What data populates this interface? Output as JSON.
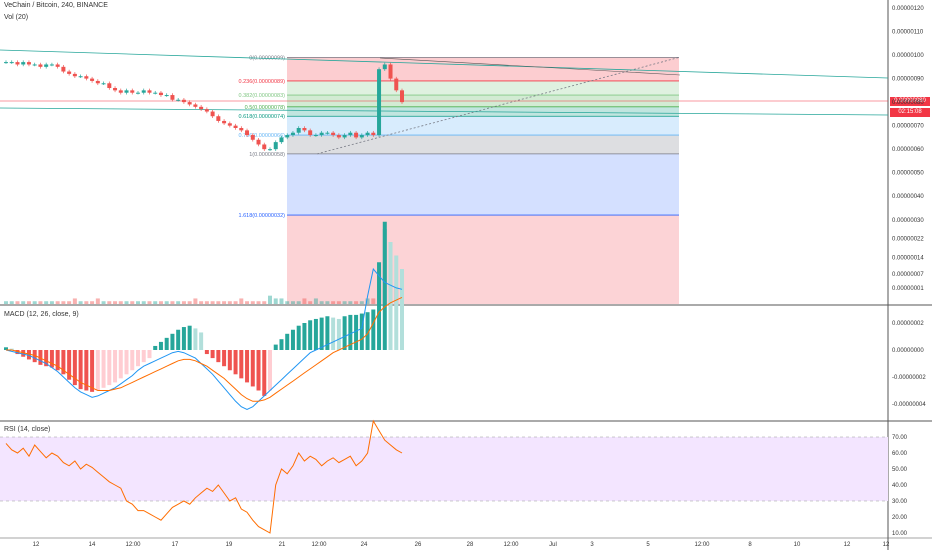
{
  "header": {
    "symbol_title": "VeChain / Bitcoin, 240, BINANCE",
    "volume_label": "Vol (20)",
    "macd_label": "MACD (12, 26, close, 9)",
    "rsi_label": "RSI (14, close)"
  },
  "price_axis": {
    "ticks": [
      "0.00000120",
      "0.00000110",
      "0.00000100",
      "0.00000090",
      "0.00000080",
      "0.00000070",
      "0.00000060",
      "0.00000050",
      "0.00000040",
      "0.00000030",
      "0.00000022",
      "0.00000014",
      "0.00000007",
      "0.00000001"
    ],
    "current_price": "0.00000080",
    "countdown": "02:15:08"
  },
  "macd_axis": {
    "ticks": [
      "0.00000002",
      "0.00000000",
      "-0.00000002",
      "-0.00000004"
    ]
  },
  "rsi_axis": {
    "ticks": [
      "70.00",
      "60.00",
      "50.00",
      "40.00",
      "30.00",
      "20.00",
      "10.00"
    ]
  },
  "time_axis": {
    "ticks": [
      "12",
      "14",
      "12:00",
      "17",
      "19",
      "21",
      "12:00",
      "24",
      "26",
      "28",
      "12:00",
      "Jul",
      "3",
      "5",
      "12:00",
      "8",
      "10",
      "12",
      "12"
    ]
  },
  "fib_levels": [
    {
      "label": "0(0.00000099)",
      "price": 9.9e-07,
      "color": "#787b86"
    },
    {
      "label": "0.236(0.00000089)",
      "price": 8.9e-07,
      "color": "#f23645"
    },
    {
      "label": "0.382(0.00000083)",
      "price": 8.3e-07,
      "color": "#81c784"
    },
    {
      "label": "0.5(0.00000078)",
      "price": 7.8e-07,
      "color": "#4caf50"
    },
    {
      "label": "0.618(0.00000074)",
      "price": 7.4e-07,
      "color": "#089981"
    },
    {
      "label": "0.786(0.00000066)",
      "price": 6.6e-07,
      "color": "#64b5f6"
    },
    {
      "label": "1(0.00000058)",
      "price": 5.8e-07,
      "color": "#787b86"
    },
    {
      "label": "1.618(0.00000032)",
      "price": 3.2e-07,
      "color": "#2962ff"
    }
  ],
  "colors": {
    "up": "#26a69a",
    "down": "#ef5350",
    "macd_line": "#2196f3",
    "signal_line": "#ff6d00",
    "rsi_line": "#ff6d00",
    "rsi_band": "#f3e5ff",
    "price_tag": "#f23645",
    "trendline": "#26a69a"
  },
  "chart_data": {
    "type": "candlestick",
    "close": [
      9.7e-07,
      9.7e-07,
      9.6e-07,
      9.7e-07,
      9.6e-07,
      9.6e-07,
      9.5e-07,
      9.6e-07,
      9.6e-07,
      9.5e-07,
      9.3e-07,
      9.2e-07,
      9.1e-07,
      9.1e-07,
      9e-07,
      8.9e-07,
      8.8e-07,
      8.8e-07,
      8.6e-07,
      8.5e-07,
      8.4e-07,
      8.5e-07,
      8.4e-07,
      8.4e-07,
      8.5e-07,
      8.4e-07,
      8.4e-07,
      8.3e-07,
      8.3e-07,
      8.1e-07,
      8.1e-07,
      8e-07,
      7.9e-07,
      7.8e-07,
      7.7e-07,
      7.6e-07,
      7.4e-07,
      7.2e-07,
      7.1e-07,
      7e-07,
      6.9e-07,
      6.8e-07,
      6.6e-07,
      6.4e-07,
      6.2e-07,
      6e-07,
      6e-07,
      6.3e-07,
      6.5e-07,
      6.6e-07,
      6.7e-07,
      6.9e-07,
      6.8e-07,
      6.6e-07,
      6.6e-07,
      6.7e-07,
      6.7e-07,
      6.6e-07,
      6.5e-07,
      6.6e-07,
      6.7e-07,
      6.5e-07,
      6.6e-07,
      6.7e-07,
      6.6e-07,
      9.4e-07,
      9.6e-07,
      9e-07,
      8.5e-07,
      8e-07
    ],
    "volume_scale": [
      1,
      1,
      1,
      1,
      1,
      1,
      1,
      1,
      1,
      1,
      1,
      1,
      2,
      1,
      1,
      1,
      2,
      1,
      1,
      1,
      1,
      1,
      1,
      1,
      1,
      1,
      1,
      1,
      1,
      1,
      1,
      1,
      1,
      2,
      1,
      1,
      1,
      1,
      1,
      1,
      1,
      2,
      1,
      1,
      1,
      1,
      3,
      2,
      2,
      1,
      1,
      1,
      2,
      1,
      2,
      1,
      1,
      1,
      1,
      1,
      1,
      1,
      1,
      2,
      2,
      12,
      27,
      14,
      6,
      3
    ],
    "rsi": [
      66,
      62,
      60,
      63,
      58,
      65,
      61,
      57,
      60,
      58,
      54,
      52,
      55,
      50,
      53,
      51,
      48,
      45,
      42,
      40,
      38,
      30,
      28,
      24,
      24,
      22,
      20,
      18,
      22,
      26,
      28,
      30,
      28,
      32,
      35,
      38,
      36,
      40,
      35,
      30,
      32,
      25,
      23,
      18,
      14,
      12,
      10,
      40,
      50,
      47,
      52,
      60,
      55,
      58,
      56,
      52,
      55,
      57,
      54,
      56,
      58,
      52,
      55,
      60,
      80,
      74,
      68,
      65,
      62,
      60
    ],
    "macd_hist_sign": [
      1,
      1,
      -1,
      -1,
      -1,
      -1,
      -1,
      -1,
      -1,
      -1,
      -1,
      -1,
      -1,
      -1,
      -1,
      -1,
      -1,
      -1,
      -1,
      -1,
      -1,
      -1,
      -1,
      -1,
      -1,
      -1,
      1,
      1,
      1,
      1,
      1,
      1,
      1,
      1,
      1,
      -1,
      -1,
      -1,
      -1,
      -1,
      -1,
      -1,
      -1,
      -1,
      -1,
      -1,
      -1,
      1,
      1,
      1,
      1,
      1,
      1,
      1,
      1,
      1,
      1,
      1,
      1,
      1,
      1,
      1,
      1,
      1,
      1,
      1,
      1,
      1,
      1,
      1
    ],
    "macd_hist": [
      0.2,
      0.1,
      -0.3,
      -0.5,
      -0.7,
      -0.9,
      -1.1,
      -1.2,
      -1.3,
      -1.5,
      -1.8,
      -2.2,
      -2.6,
      -2.9,
      -3.0,
      -3.1,
      -3.0,
      -2.8,
      -2.6,
      -2.4,
      -2.1,
      -1.8,
      -1.5,
      -1.2,
      -0.9,
      -0.6,
      0.3,
      0.6,
      0.9,
      1.2,
      1.5,
      1.7,
      1.8,
      1.6,
      1.3,
      -0.3,
      -0.6,
      -0.9,
      -1.2,
      -1.5,
      -1.8,
      -2.1,
      -2.4,
      -2.7,
      -3.0,
      -3.4,
      -3.0,
      0.4,
      0.8,
      1.2,
      1.5,
      1.8,
      2.0,
      2.2,
      2.3,
      2.4,
      2.5,
      2.4,
      2.3,
      2.5,
      2.6,
      2.6,
      2.7,
      2.8,
      3.0,
      6.5,
      9.5,
      8.0,
      7.0,
      6.0
    ],
    "macd_line": [
      0.0,
      -0.1,
      -0.2,
      -0.3,
      -0.4,
      -0.6,
      -0.8,
      -1.0,
      -1.3,
      -1.6,
      -2.0,
      -2.4,
      -2.8,
      -3.1,
      -3.3,
      -3.5,
      -3.4,
      -3.2,
      -3.0,
      -2.8,
      -2.5,
      -2.2,
      -1.9,
      -1.5,
      -1.2,
      -1.0,
      -0.8,
      -0.6,
      -0.4,
      -0.2,
      -0.1,
      -0.2,
      -0.4,
      -0.6,
      -1.0,
      -1.4,
      -1.8,
      -2.3,
      -2.8,
      -3.3,
      -3.8,
      -4.2,
      -4.4,
      -4.2,
      -3.8,
      -3.4,
      -3.0,
      -2.6,
      -2.2,
      -1.8,
      -1.4,
      -1.0,
      -0.6,
      -0.2,
      0.0,
      0.2,
      0.4,
      0.6,
      0.8,
      1.0,
      1.2,
      1.4,
      1.6,
      4.0,
      6.0,
      5.5,
      5.0,
      4.8,
      4.6,
      4.5
    ],
    "signal_line": [
      0.0,
      0.0,
      -0.1,
      -0.2,
      -0.3,
      -0.4,
      -0.6,
      -0.8,
      -1.0,
      -1.2,
      -1.5,
      -1.8,
      -2.1,
      -2.4,
      -2.6,
      -2.8,
      -3.0,
      -3.0,
      -3.0,
      -2.9,
      -2.8,
      -2.6,
      -2.4,
      -2.2,
      -2.0,
      -1.8,
      -1.6,
      -1.4,
      -1.2,
      -1.0,
      -0.8,
      -0.7,
      -0.7,
      -0.8,
      -1.0,
      -1.2,
      -1.5,
      -1.8,
      -2.1,
      -2.5,
      -2.9,
      -3.3,
      -3.6,
      -3.8,
      -3.8,
      -3.7,
      -3.5,
      -3.2,
      -2.9,
      -2.6,
      -2.3,
      -2.0,
      -1.7,
      -1.4,
      -1.1,
      -0.8,
      -0.5,
      -0.2,
      0.0,
      0.2,
      0.4,
      0.6,
      0.8,
      1.2,
      2.0,
      2.8,
      3.2,
      3.5,
      3.7,
      3.9
    ]
  }
}
